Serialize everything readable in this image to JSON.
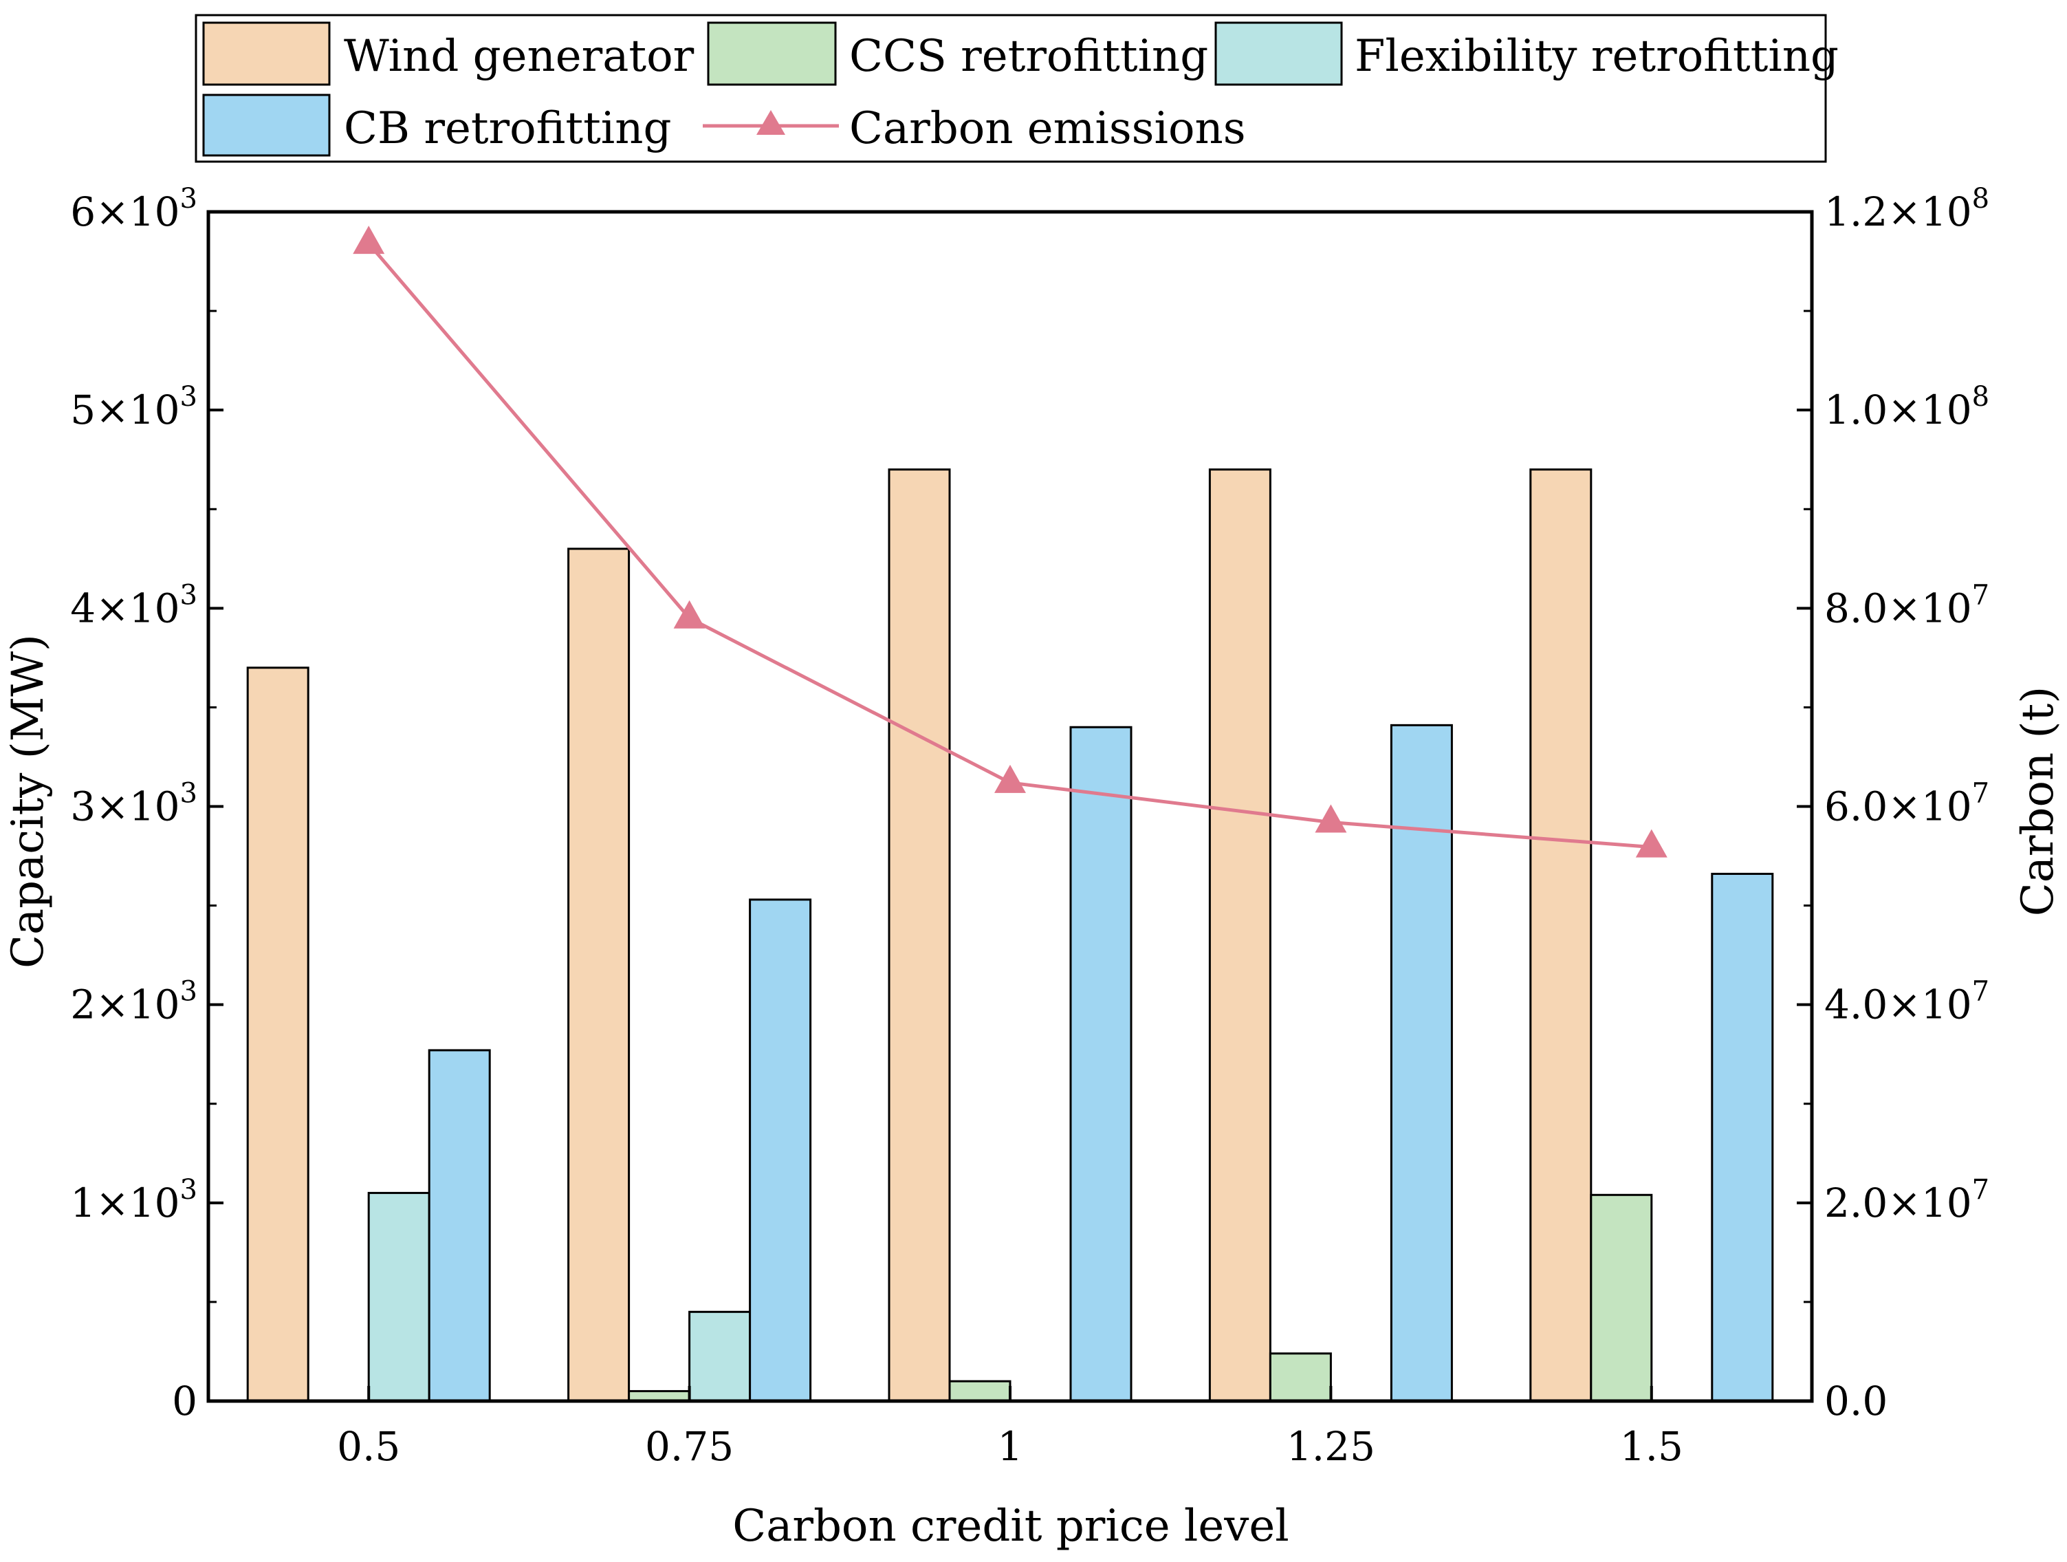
{
  "chart_data": {
    "type": "bar",
    "xlabel": "Carbon credit price level",
    "ylabel_left": "Capacity (MW)",
    "ylabel_right": "Carbon (t)",
    "categories": [
      "0.5",
      "0.75",
      "1",
      "1.25",
      "1.5"
    ],
    "ylim_left": [
      0,
      6000
    ],
    "ylim_right": [
      0,
      120000000
    ],
    "left_ticks": [
      {
        "value": 0,
        "mant": "0",
        "exp": ""
      },
      {
        "value": 1000,
        "mant": "1×10",
        "exp": "3"
      },
      {
        "value": 2000,
        "mant": "2×10",
        "exp": "3"
      },
      {
        "value": 3000,
        "mant": "3×10",
        "exp": "3"
      },
      {
        "value": 4000,
        "mant": "4×10",
        "exp": "3"
      },
      {
        "value": 5000,
        "mant": "5×10",
        "exp": "3"
      },
      {
        "value": 6000,
        "mant": "6×10",
        "exp": "3"
      }
    ],
    "right_ticks": [
      {
        "value": 0,
        "mant": "0.0",
        "exp": ""
      },
      {
        "value": 20000000,
        "mant": "2.0×10",
        "exp": "7"
      },
      {
        "value": 40000000,
        "mant": "4.0×10",
        "exp": "7"
      },
      {
        "value": 60000000,
        "mant": "6.0×10",
        "exp": "7"
      },
      {
        "value": 80000000,
        "mant": "8.0×10",
        "exp": "7"
      },
      {
        "value": 100000000,
        "mant": "1.0×10",
        "exp": "8"
      },
      {
        "value": 120000000,
        "mant": "1.2×10",
        "exp": "8"
      }
    ],
    "series": [
      {
        "name": "Wind generator",
        "color": "#f6d6b4",
        "values": [
          3700,
          4300,
          4700,
          4700,
          4700
        ]
      },
      {
        "name": "CCS retrofitting",
        "color": "#c4e4c0",
        "values": [
          0,
          50,
          100,
          240,
          1040
        ]
      },
      {
        "name": "Flexibility retrofitting",
        "color": "#b8e4e4",
        "values": [
          1050,
          450,
          0,
          0,
          0
        ]
      },
      {
        "name": "CB retrofitting",
        "color": "#a0d6f2",
        "values": [
          1770,
          2530,
          3400,
          3410,
          2660
        ]
      }
    ],
    "line_series": {
      "name": "Carbon emissions",
      "color": "#e07a8e",
      "marker": "triangle",
      "values": [
        116800000,
        79000000,
        62400000,
        58400000,
        55900000
      ]
    },
    "legend_position": "top"
  }
}
